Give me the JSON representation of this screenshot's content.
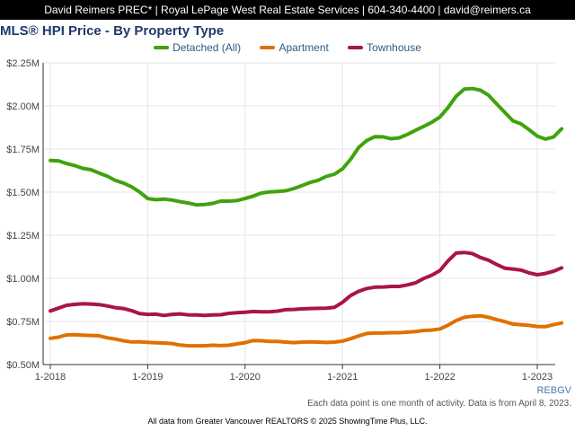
{
  "header": {
    "contact": "David Reimers PREC* | Royal LePage West Real Estate Services | 604-340-4400 | david@reimers.ca"
  },
  "colors": {
    "detached": "#3fa30c",
    "apartment": "#e07000",
    "townhouse": "#a8154a",
    "grid": "#e4e4e4",
    "axis": "#333333"
  },
  "chart_data": {
    "type": "line",
    "title": "MLS® HPI Price - By Property Type",
    "xlabel": "",
    "ylabel": "",
    "x_start": "2018-01",
    "x_end": "2023-03",
    "x_ticks": [
      "1-2018",
      "1-2019",
      "1-2020",
      "1-2021",
      "1-2022",
      "1-2023"
    ],
    "y_ticks": [
      "$0.50M",
      "$0.75M",
      "$1.00M",
      "$1.25M",
      "$1.50M",
      "$1.75M",
      "$2.00M",
      "$2.25M"
    ],
    "ylim": [
      0.5,
      2.25
    ],
    "y_unit": "$M",
    "grid": true,
    "legend_position": "top",
    "series": [
      {
        "name": "Detached (All)",
        "color": "#3fa30c",
        "values": [
          1.684,
          1.682,
          1.666,
          1.654,
          1.638,
          1.63,
          1.611,
          1.593,
          1.568,
          1.553,
          1.531,
          1.501,
          1.463,
          1.456,
          1.46,
          1.454,
          1.445,
          1.437,
          1.426,
          1.428,
          1.435,
          1.448,
          1.448,
          1.451,
          1.463,
          1.477,
          1.495,
          1.501,
          1.504,
          1.508,
          1.521,
          1.538,
          1.556,
          1.569,
          1.591,
          1.604,
          1.635,
          1.69,
          1.76,
          1.8,
          1.822,
          1.821,
          1.81,
          1.815,
          1.835,
          1.859,
          1.881,
          1.905,
          1.936,
          1.99,
          2.056,
          2.098,
          2.101,
          2.091,
          2.062,
          2.012,
          1.962,
          1.914,
          1.896,
          1.862,
          1.825,
          1.808,
          1.82,
          1.867
        ]
      },
      {
        "name": "Apartment",
        "color": "#e07000",
        "values": [
          0.652,
          0.659,
          0.672,
          0.673,
          0.671,
          0.669,
          0.667,
          0.655,
          0.648,
          0.638,
          0.631,
          0.631,
          0.629,
          0.626,
          0.625,
          0.622,
          0.613,
          0.609,
          0.609,
          0.609,
          0.612,
          0.61,
          0.612,
          0.62,
          0.627,
          0.639,
          0.638,
          0.634,
          0.634,
          0.63,
          0.627,
          0.63,
          0.632,
          0.63,
          0.628,
          0.63,
          0.636,
          0.65,
          0.666,
          0.68,
          0.683,
          0.683,
          0.685,
          0.685,
          0.688,
          0.691,
          0.698,
          0.7,
          0.706,
          0.728,
          0.755,
          0.774,
          0.78,
          0.783,
          0.774,
          0.761,
          0.749,
          0.735,
          0.731,
          0.727,
          0.721,
          0.72,
          0.731,
          0.741
        ]
      },
      {
        "name": "Townhouse",
        "color": "#a8154a",
        "values": [
          0.811,
          0.827,
          0.844,
          0.849,
          0.853,
          0.851,
          0.848,
          0.84,
          0.83,
          0.825,
          0.813,
          0.796,
          0.791,
          0.792,
          0.785,
          0.791,
          0.794,
          0.788,
          0.788,
          0.785,
          0.788,
          0.789,
          0.797,
          0.801,
          0.803,
          0.808,
          0.806,
          0.806,
          0.81,
          0.818,
          0.82,
          0.823,
          0.825,
          0.826,
          0.827,
          0.832,
          0.861,
          0.9,
          0.925,
          0.941,
          0.949,
          0.95,
          0.953,
          0.953,
          0.962,
          0.974,
          0.999,
          1.018,
          1.045,
          1.101,
          1.147,
          1.15,
          1.144,
          1.121,
          1.105,
          1.08,
          1.059,
          1.054,
          1.048,
          1.032,
          1.021,
          1.028,
          1.041,
          1.061
        ]
      }
    ],
    "annotations": [
      "REBGV",
      "Each data point is one month of activity. Data is from April 8, 2023.",
      "All data from Greater Vancouver REALTORS © 2025 ShowingTime Plus, LLC."
    ]
  }
}
